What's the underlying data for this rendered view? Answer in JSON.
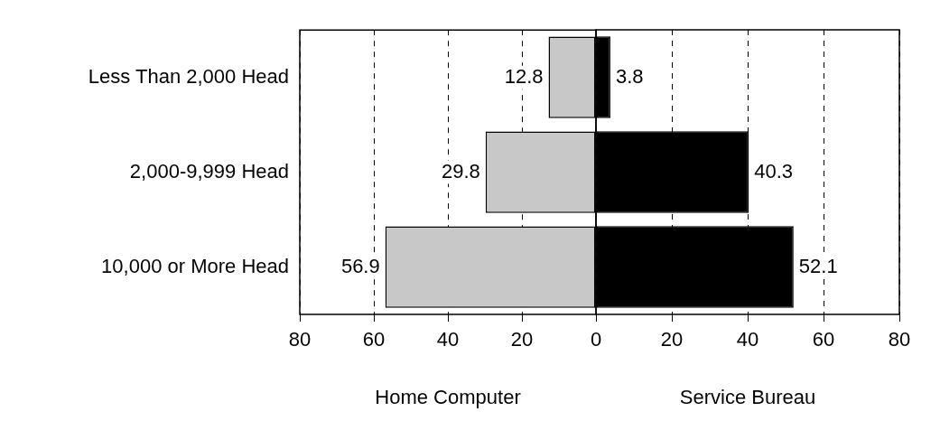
{
  "chart_data": [
    {
      "type": "bar",
      "orientation": "horizontal",
      "xlabel": "Home Computer",
      "categories": [
        "Less Than 2,000 Head",
        "2,000-9,999 Head",
        "10,000 or More Head"
      ],
      "values": [
        12.8,
        29.8,
        56.9
      ],
      "color": "#c8c8c8",
      "data_labels": true,
      "xlim": [
        80,
        0
      ],
      "xticks": [
        80,
        60,
        40,
        20,
        {
          "value": 0,
          "label": null
        }
      ],
      "grid": "x"
    },
    {
      "type": "bar",
      "orientation": "horizontal",
      "xlabel": "Service Bureau",
      "categories": [
        null,
        null,
        null
      ],
      "values": [
        3.8,
        40.3,
        52.1
      ],
      "color": "#000000",
      "data_labels": true,
      "xlim": [
        0,
        80
      ],
      "xticks": [
        0,
        20,
        40,
        60,
        80
      ],
      "grid": "x",
      "tick_labels": "x"
    }
  ]
}
